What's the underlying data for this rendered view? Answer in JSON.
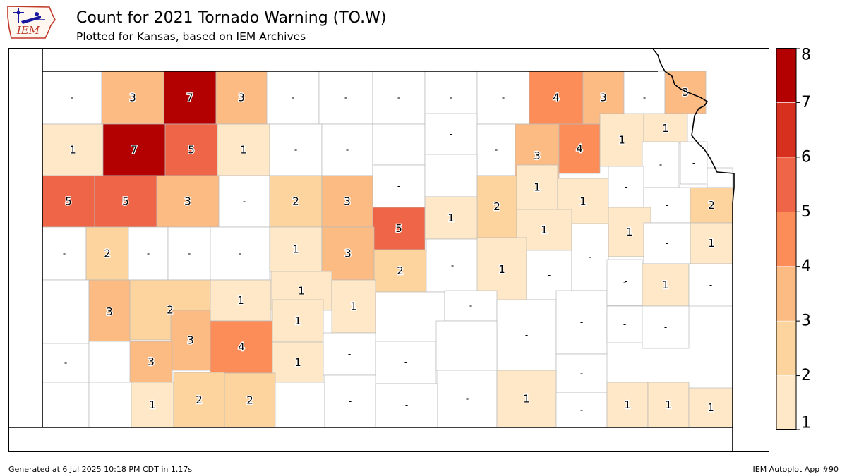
{
  "header": {
    "title": "Count for 2021 Tornado Warning (TO.W)",
    "subtitle": "Plotted for Kansas, based on IEM Archives"
  },
  "logo": {
    "text": "IEM",
    "icon": "iem-logo-icon",
    "color": "#c0392b"
  },
  "footer": {
    "left": "Generated at 6 Jul 2025 10:18 PM CDT in 1.17s",
    "right": "IEM Autoplot App #90"
  },
  "colorbar": {
    "ticks": [
      "1",
      "2",
      "3",
      "4",
      "5",
      "6",
      "7",
      "8"
    ],
    "colors": [
      "#fee8c8",
      "#fdd49e",
      "#fdbb84",
      "#fc8d59",
      "#ef6548",
      "#d7301f",
      "#b30000"
    ]
  },
  "chart_data": {
    "type": "choropleth",
    "region": "Kansas counties",
    "value_range": [
      1,
      8
    ],
    "counties": [
      {
        "value": "-"
      },
      {
        "value": "3"
      },
      {
        "value": "7"
      },
      {
        "value": "3"
      },
      {
        "value": "-"
      },
      {
        "value": "-"
      },
      {
        "value": "-"
      },
      {
        "value": "-"
      },
      {
        "value": "-"
      },
      {
        "value": "4"
      },
      {
        "value": "3"
      },
      {
        "value": "-"
      },
      {
        "value": "3"
      },
      {
        "value": "1"
      },
      {
        "value": "7"
      },
      {
        "value": "5"
      },
      {
        "value": "1"
      },
      {
        "value": "-"
      },
      {
        "value": "-"
      },
      {
        "value": "-"
      },
      {
        "value": "-"
      },
      {
        "value": "-"
      },
      {
        "value": "3"
      },
      {
        "value": "4"
      },
      {
        "value": "1"
      },
      {
        "value": "1"
      },
      {
        "value": "-"
      },
      {
        "value": "-"
      },
      {
        "value": "-"
      },
      {
        "value": "5"
      },
      {
        "value": "5"
      },
      {
        "value": "3"
      },
      {
        "value": "-"
      },
      {
        "value": "2"
      },
      {
        "value": "3"
      },
      {
        "value": "-"
      },
      {
        "value": "-"
      },
      {
        "value": "2"
      },
      {
        "value": "1"
      },
      {
        "value": "1"
      },
      {
        "value": "-"
      },
      {
        "value": "-"
      },
      {
        "value": "2"
      },
      {
        "value": "5"
      },
      {
        "value": "1"
      },
      {
        "value": "1"
      },
      {
        "value": "1"
      },
      {
        "value": "1"
      },
      {
        "value": "-"
      },
      {
        "value": "2"
      },
      {
        "value": "-"
      },
      {
        "value": "-"
      },
      {
        "value": "-"
      },
      {
        "value": "1"
      },
      {
        "value": "3"
      },
      {
        "value": "2"
      },
      {
        "value": "-"
      },
      {
        "value": "1"
      },
      {
        "value": "-"
      },
      {
        "value": "-"
      },
      {
        "value": "-"
      },
      {
        "value": "-"
      },
      {
        "value": "-"
      },
      {
        "value": "3"
      },
      {
        "value": "2"
      },
      {
        "value": "1"
      },
      {
        "value": "1"
      },
      {
        "value": "1"
      },
      {
        "value": "-"
      },
      {
        "value": "-"
      },
      {
        "value": "-"
      },
      {
        "value": "-"
      },
      {
        "value": "-"
      },
      {
        "value": "1"
      },
      {
        "value": "-"
      },
      {
        "value": "3"
      },
      {
        "value": "4"
      },
      {
        "value": "1"
      },
      {
        "value": "1"
      },
      {
        "value": "-"
      },
      {
        "value": "-"
      },
      {
        "value": "3"
      },
      {
        "value": "-"
      },
      {
        "value": "-"
      },
      {
        "value": "-"
      },
      {
        "value": "-"
      },
      {
        "value": "-"
      },
      {
        "value": "-"
      },
      {
        "value": "-"
      },
      {
        "value": "-"
      },
      {
        "value": "1"
      },
      {
        "value": "2"
      },
      {
        "value": "2"
      },
      {
        "value": "-"
      },
      {
        "value": "-"
      },
      {
        "value": "-"
      },
      {
        "value": "-"
      },
      {
        "value": "1"
      },
      {
        "value": "-"
      },
      {
        "value": "1"
      },
      {
        "value": "1"
      },
      {
        "value": "1"
      }
    ]
  }
}
